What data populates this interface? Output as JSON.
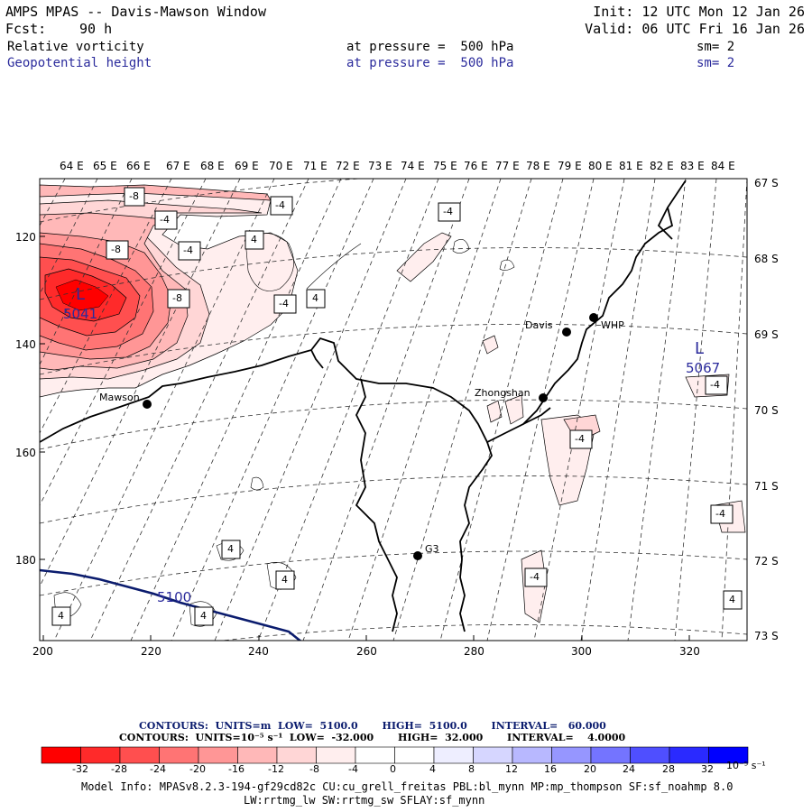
{
  "header": {
    "title": "AMPS MPAS -- Davis-Mawson Window",
    "init": "Init: 12 UTC Mon 12 Jan 26",
    "fcst_label": "Fcst:",
    "fcst_value": "90 h",
    "valid": "Valid: 06 UTC Fri 16 Jan 26",
    "field1": {
      "name": "Relative vorticity",
      "level": "at pressure =  500 hPa",
      "sm": "sm= 2"
    },
    "field2": {
      "name": "Geopotential height",
      "level": "at pressure =  500 hPa",
      "sm": "sm= 2"
    }
  },
  "axes": {
    "top_lon_labels": [
      "64 E",
      "65 E",
      "66 E",
      "67 E",
      "68 E",
      "69 E",
      "70 E",
      "71 E",
      "72 E",
      "73 E",
      "74 E",
      "75 E",
      "76 E",
      "77 E",
      "78 E",
      "79 E",
      "80 E",
      "81 E",
      "82 E",
      "83 E",
      "84 E"
    ],
    "right_lat_labels": [
      "67 S",
      "68 S",
      "69 S",
      "70 S",
      "71 S",
      "72 S",
      "73 S"
    ],
    "left_ticks": [
      "120",
      "140",
      "160",
      "180"
    ],
    "bottom_ticks": [
      "200",
      "220",
      "240",
      "260",
      "280",
      "300",
      "320"
    ]
  },
  "stations": [
    {
      "name": "Mawson"
    },
    {
      "name": "Davis"
    },
    {
      "name": "WHP"
    },
    {
      "name": "Zhongshan"
    },
    {
      "name": "G3"
    }
  ],
  "contour_labels": {
    "vort": [
      "-8",
      "-4",
      "-8",
      "-4",
      "4",
      "-4",
      "-8",
      "-4",
      "4",
      "-4",
      "-4",
      "-4",
      "4",
      "4",
      "-4",
      "4",
      "4",
      "-4",
      "4"
    ],
    "height_low1": {
      "letter": "L",
      "value": "5041"
    },
    "height_low2": {
      "letter": "L",
      "value": "5067"
    },
    "height_line": "5100"
  },
  "colors": {
    "height_contour": "#0b1c6e",
    "label_blue": "#2b2b9c",
    "coast": "#000000"
  },
  "legend": {
    "contours1": "CONTOURS:  UNITS=m  LOW=  5100.0       HIGH=  5100.0       INTERVAL=   60.000",
    "contours2": "CONTOURS:  UNITS=10⁻⁵ s⁻¹  LOW=  -32.000       HIGH=  32.000       INTERVAL=    4.0000",
    "colorbar": {
      "colors": [
        "#ff0000",
        "#ff2a2a",
        "#ff4f4f",
        "#ff7474",
        "#ff9696",
        "#ffb8b8",
        "#ffd6d6",
        "#ffeeee",
        "#ffffff",
        "#ffffff",
        "#eeeeff",
        "#d6d6ff",
        "#b8b8ff",
        "#9696ff",
        "#7474ff",
        "#4f4fff",
        "#2a2aff",
        "#0000ff"
      ],
      "ticks": [
        "-32",
        "-28",
        "-24",
        "-20",
        "-16",
        "-12",
        "-8",
        "-4",
        "0",
        "4",
        "8",
        "12",
        "16",
        "20",
        "24",
        "28",
        "32"
      ],
      "unit": "10⁻⁵ s⁻¹"
    }
  },
  "footer": {
    "line1": "Model Info: MPASv8.2.3-194-gf29cd82c CU:cu_grell_freitas PBL:bl_mynn MP:mp_thompson SF:sf_noahmp 8.0",
    "line2": "LW:rrtmg_lw SW:rrtmg_sw SFLAY:sf_mynn"
  }
}
